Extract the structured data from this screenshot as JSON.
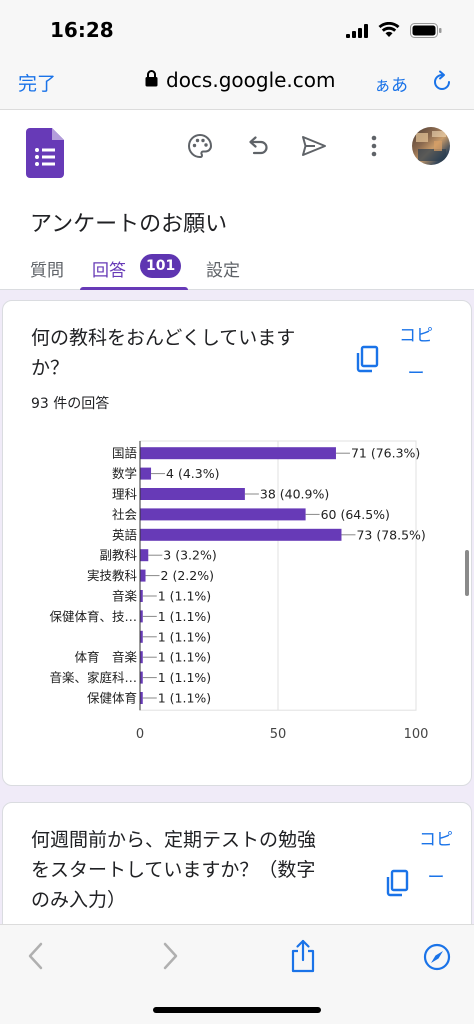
{
  "status_bar": {
    "time": "16:28"
  },
  "safari": {
    "done_label": "完了",
    "url": "docs.google.com",
    "aa_label": "ぁあ"
  },
  "forms": {
    "title": "アンケートのお願い",
    "tabs": [
      {
        "label": "質問"
      },
      {
        "label": "回答",
        "badge": "101"
      },
      {
        "label": "設定"
      }
    ],
    "accent_color": "#673ab7"
  },
  "questions": [
    {
      "title": "何の教科をおんどくしていますか？",
      "response_count": "93 件の回答",
      "copy_label": "コピー"
    },
    {
      "title": "何週間前から、定期テストの勉強をスタートしていますか？（数字のみ入力）",
      "copy_label": "コピー"
    }
  ],
  "chart_data": {
    "type": "bar",
    "orientation": "horizontal",
    "categories": [
      "国語",
      "数学",
      "理科",
      "社会",
      "英語",
      "副教科",
      "実技教科",
      "音楽",
      "保健体育、技…",
      "",
      "体育　音楽",
      "音楽、家庭科…",
      "保健体育"
    ],
    "values": [
      71,
      4,
      38,
      60,
      73,
      3,
      2,
      1,
      1,
      1,
      1,
      1,
      1
    ],
    "data_labels": [
      "71 (76.3%)",
      "4 (4.3%)",
      "38 (40.9%)",
      "60 (64.5%)",
      "73 (78.5%)",
      "3 (3.2%)",
      "2 (2.2%)",
      "1 (1.1%)",
      "1 (1.1%)",
      "1 (1.1%)",
      "1 (1.1%)",
      "1 (1.1%)",
      "1 (1.1%)"
    ],
    "xlim": [
      0,
      100
    ],
    "x_ticks": [
      "0",
      "50",
      "100"
    ],
    "bar_color": "#673ab7",
    "grid": true
  }
}
